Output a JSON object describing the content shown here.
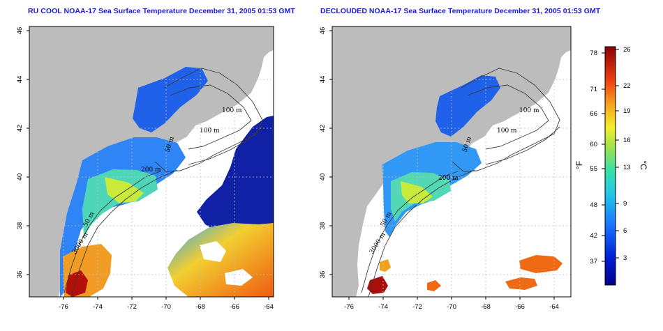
{
  "panels": [
    {
      "title": "RU COOL NOAA-17 Sea Surface Temperature December 31, 2005 01:53 GMT",
      "x_ticks": [
        "-76",
        "-74",
        "-72",
        "-70",
        "-68",
        "-66",
        "-64"
      ],
      "y_ticks": [
        "46",
        "44",
        "42",
        "40",
        "38",
        "36"
      ],
      "contour_labels": [
        "100 m",
        "100 m",
        "50 m",
        "200 m",
        "50 m",
        "3000 m"
      ]
    },
    {
      "title": "DECLOUDED NOAA-17 Sea Surface Temperature December 31, 2005 01:53 GMT",
      "x_ticks": [
        "-76",
        "-74",
        "-72",
        "-70",
        "-68",
        "-66",
        "-64"
      ],
      "y_ticks": [
        "46",
        "44",
        "42",
        "40",
        "38",
        "36"
      ],
      "contour_labels": [
        "100 m",
        "100 m",
        "50 m",
        "200 m",
        "50 m",
        "3000 m"
      ]
    }
  ],
  "colorbar": {
    "unit_left": "°F",
    "unit_right": "°C",
    "fahrenheit_ticks": [
      "78",
      "71",
      "66",
      "60",
      "55",
      "48",
      "42",
      "37"
    ],
    "celsius_ticks": [
      "26",
      "22",
      "19",
      "16",
      "13",
      "9",
      "6",
      "3"
    ],
    "colors": {
      "land": "#bcbcbc",
      "cold": "#00008b",
      "cool": "#1e6cf0",
      "mid": "#3ad7c9",
      "warm": "#d5e63a",
      "hot": "#ef6a15",
      "max": "#8b0000"
    }
  }
}
